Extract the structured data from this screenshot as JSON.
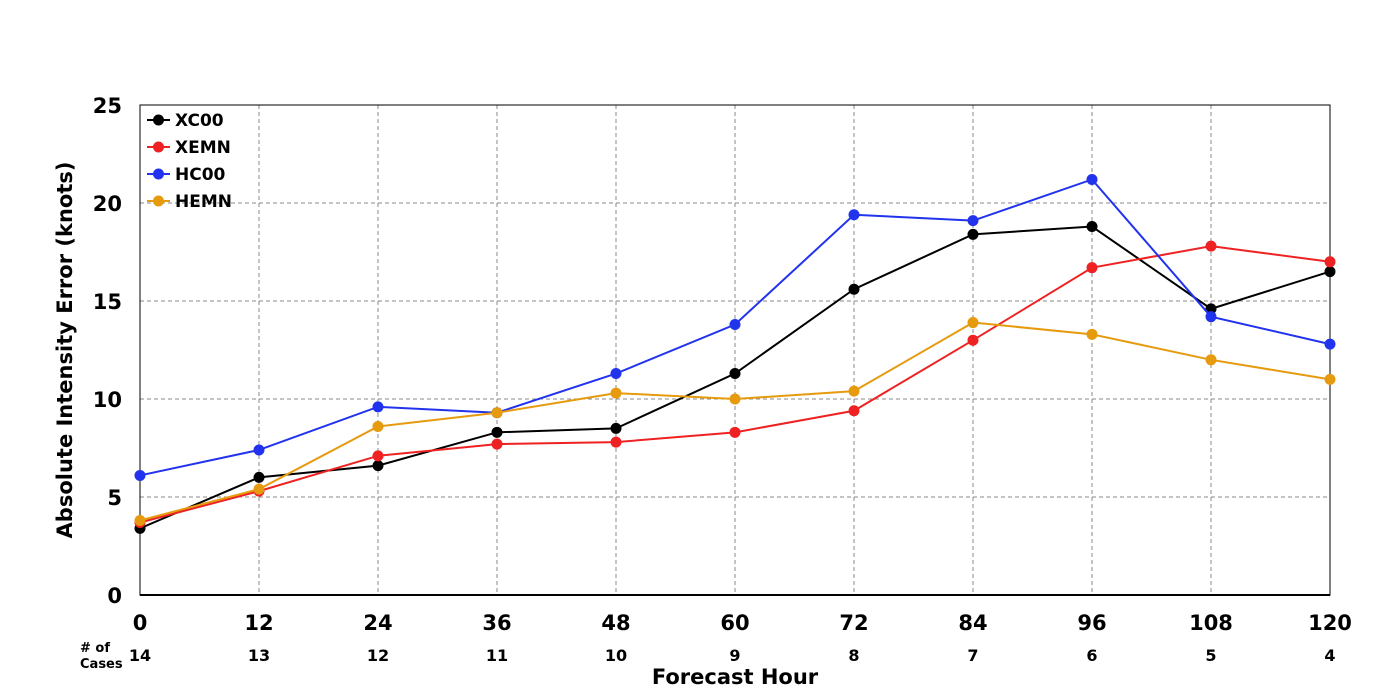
{
  "chart_data": {
    "type": "line",
    "xlabel": "Forecast Hour",
    "ylabel": "Absolute Intensity Error (knots)",
    "x": [
      0,
      12,
      24,
      36,
      48,
      60,
      72,
      84,
      96,
      108,
      120
    ],
    "xlim": [
      0,
      120
    ],
    "ylim": [
      0,
      25
    ],
    "yticks": [
      0,
      5,
      10,
      15,
      20,
      25
    ],
    "grid": true,
    "legend_position": "top-left",
    "cases_label_line1": "# of",
    "cases_label_line2": "Cases",
    "cases": [
      14,
      13,
      12,
      11,
      10,
      9,
      8,
      7,
      6,
      5,
      4
    ],
    "series": [
      {
        "name": "XC00",
        "color": "#000000",
        "values": [
          3.4,
          6.0,
          6.6,
          8.3,
          8.5,
          11.3,
          15.6,
          18.4,
          18.8,
          14.6,
          16.5
        ]
      },
      {
        "name": "XEMN",
        "color": "#ee2222",
        "values": [
          3.7,
          5.3,
          7.1,
          7.7,
          7.8,
          8.3,
          9.4,
          13.0,
          16.7,
          17.8,
          17.0
        ]
      },
      {
        "name": "HC00",
        "color": "#2233ee",
        "values": [
          6.1,
          7.4,
          9.6,
          9.3,
          11.3,
          13.8,
          19.4,
          19.1,
          21.2,
          14.2,
          12.8
        ]
      },
      {
        "name": "HEMN",
        "color": "#e69a0e",
        "values": [
          3.8,
          5.4,
          8.6,
          9.3,
          10.3,
          10.0,
          10.4,
          13.9,
          13.3,
          12.0,
          11.0
        ]
      }
    ]
  }
}
